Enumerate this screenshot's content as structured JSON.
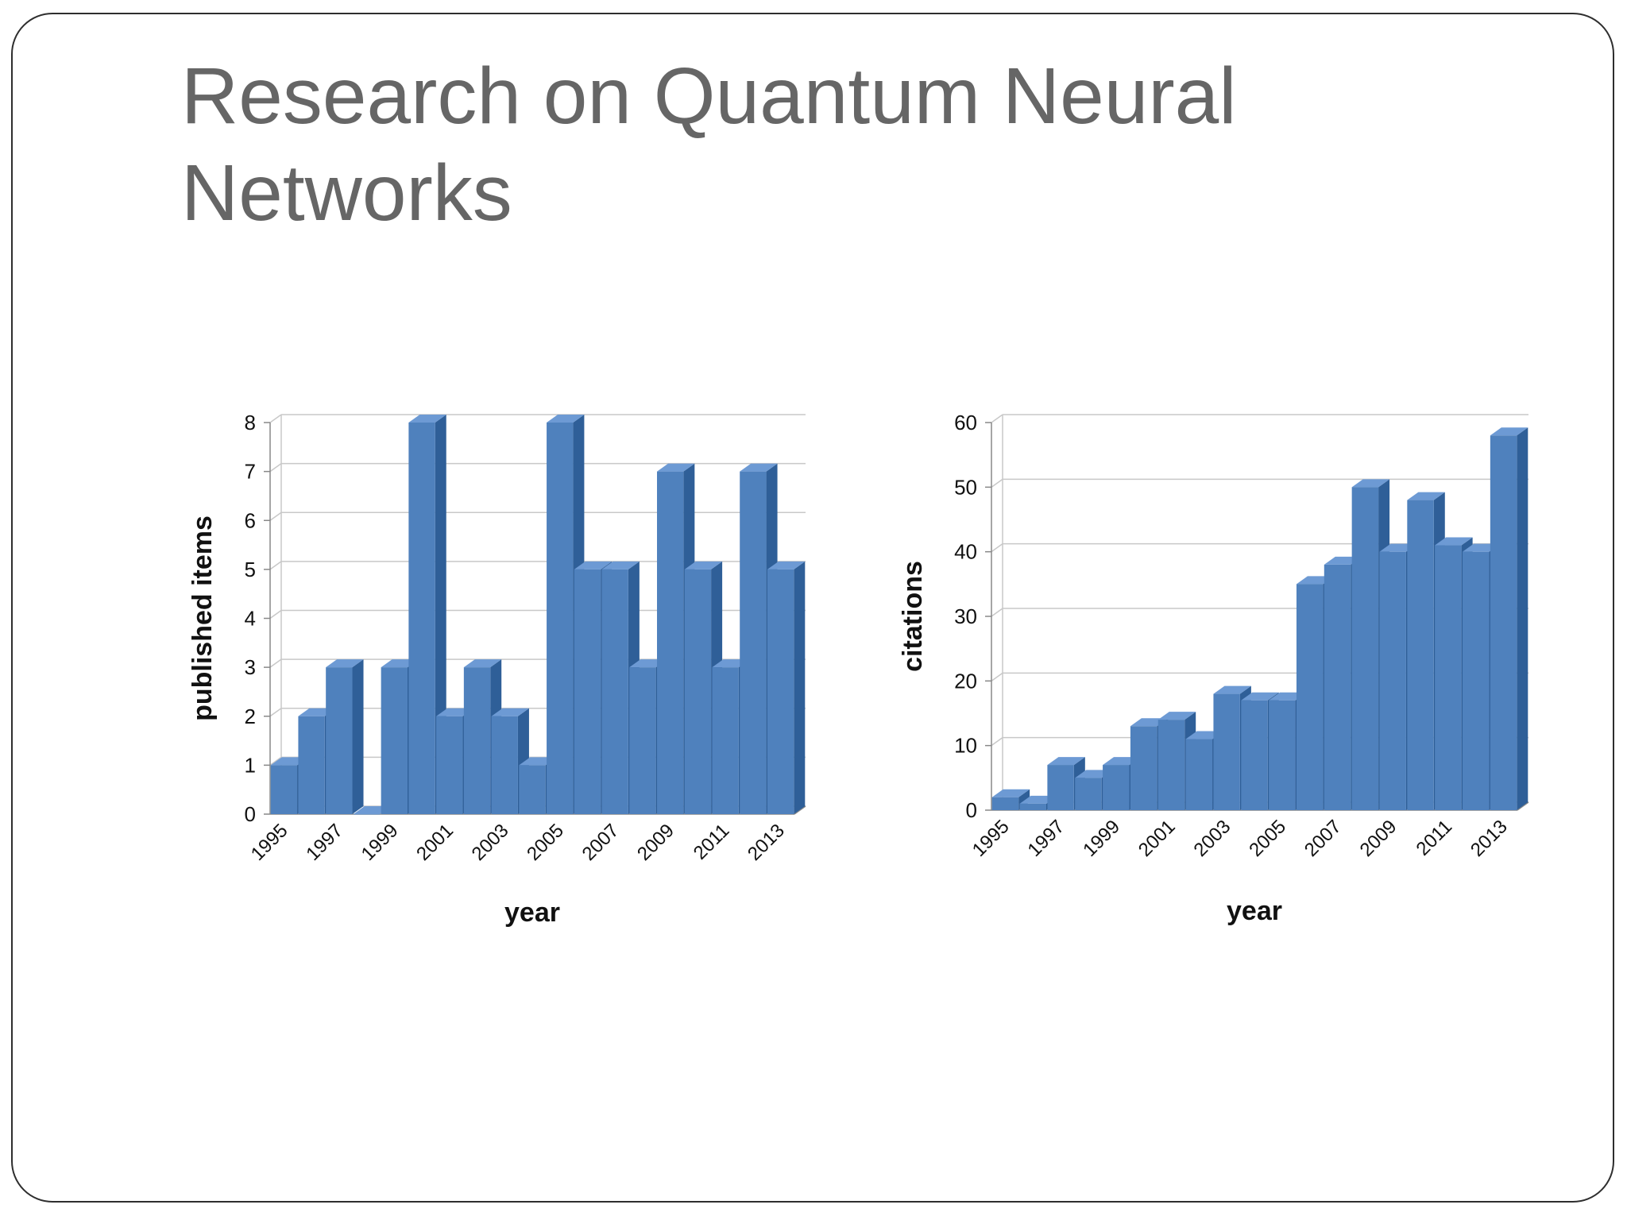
{
  "slide": {
    "title_line1": "Research on Quantum Neural",
    "title_line2": "Networks"
  },
  "colors": {
    "bar_front": "#4f81bd",
    "bar_top": "#6d9ad4",
    "bar_side": "#2f5f98",
    "gridline": "#c8c8c8",
    "title": "#666666"
  },
  "chart_data": [
    {
      "type": "bar",
      "title": "",
      "xlabel": "year",
      "ylabel": "published items",
      "ylim": [
        0,
        8
      ],
      "yticks": [
        0,
        1,
        2,
        3,
        4,
        5,
        6,
        7,
        8
      ],
      "grid": true,
      "categories": [
        "1995",
        "1996",
        "1997",
        "1998",
        "1999",
        "2000",
        "2001",
        "2002",
        "2003",
        "2004",
        "2005",
        "2006",
        "2007",
        "2008",
        "2009",
        "2010",
        "2011",
        "2012",
        "2013"
      ],
      "xtick_labels": [
        "1995",
        "1997",
        "1999",
        "2001",
        "2003",
        "2005",
        "2007",
        "2009",
        "2011",
        "2013"
      ],
      "values": [
        1,
        2,
        3,
        0,
        3,
        8,
        2,
        3,
        2,
        1,
        8,
        5,
        5,
        3,
        7,
        5,
        3,
        7,
        5
      ]
    },
    {
      "type": "bar",
      "title": "",
      "xlabel": "year",
      "ylabel": "citations",
      "ylim": [
        0,
        60
      ],
      "yticks": [
        0,
        10,
        20,
        30,
        40,
        50,
        60
      ],
      "grid": true,
      "categories": [
        "1995",
        "1996",
        "1997",
        "1998",
        "1999",
        "2000",
        "2001",
        "2002",
        "2003",
        "2004",
        "2005",
        "2006",
        "2007",
        "2008",
        "2009",
        "2010",
        "2011",
        "2012",
        "2013"
      ],
      "xtick_labels": [
        "1995",
        "1997",
        "1999",
        "2001",
        "2003",
        "2005",
        "2007",
        "2009",
        "2011",
        "2013"
      ],
      "values": [
        2,
        1,
        7,
        5,
        7,
        13,
        14,
        11,
        18,
        17,
        17,
        35,
        38,
        50,
        40,
        48,
        41,
        40,
        58
      ]
    }
  ]
}
